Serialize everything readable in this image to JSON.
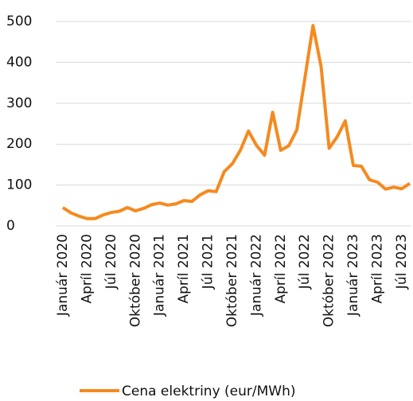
{
  "chart_data": {
    "type": "line",
    "categories": [
      "Január 2020",
      null,
      null,
      "Apríl 2020",
      null,
      null,
      "Júl 2020",
      null,
      null,
      "Október 2020",
      null,
      null,
      "Január 2021",
      null,
      null,
      "Apríl 2021",
      null,
      null,
      "Júl 2021",
      null,
      null,
      "Október 2021",
      null,
      null,
      "Január 2022",
      null,
      null,
      "Apríl 2022",
      null,
      null,
      "Júl 2022",
      null,
      null,
      "Október 2022",
      null,
      null,
      "Január 2023",
      null,
      null,
      "Apríl 2023",
      null,
      null,
      "Júl 2023",
      null
    ],
    "series": [
      {
        "name": "Cena elektriny (eur/MWh)",
        "color": "#f58a1f",
        "values": [
          45,
          32,
          24,
          18,
          18,
          27,
          33,
          36,
          45,
          37,
          43,
          52,
          56,
          51,
          54,
          62,
          60,
          76,
          86,
          84,
          133,
          152,
          185,
          232,
          197,
          173,
          278,
          185,
          196,
          235,
          362,
          490,
          390,
          190,
          218,
          257,
          148,
          146,
          113,
          107,
          90,
          95,
          91,
          104
        ]
      }
    ],
    "ylim": [
      0,
      500
    ],
    "yticks": [
      0,
      100,
      200,
      300,
      400,
      500
    ],
    "grid": true
  }
}
